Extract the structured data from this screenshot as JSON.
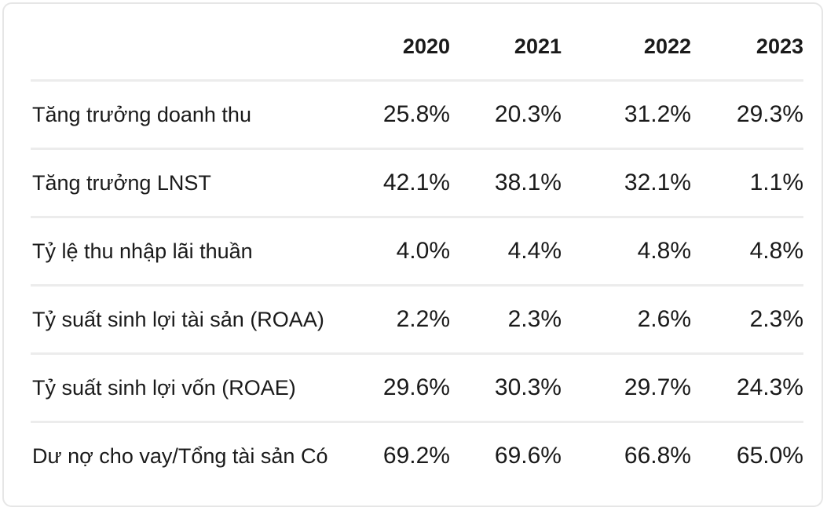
{
  "table": {
    "columns": [
      "",
      "2020",
      "2021",
      "2022",
      "2023"
    ],
    "rows": [
      {
        "label": "Tăng trưởng doanh thu",
        "values": [
          "25.8%",
          "20.3%",
          "31.2%",
          "29.3%"
        ]
      },
      {
        "label": "Tăng trưởng LNST",
        "values": [
          "42.1%",
          "38.1%",
          "32.1%",
          "1.1%"
        ]
      },
      {
        "label": "Tỷ lệ thu nhập lãi thuần",
        "values": [
          "4.0%",
          "4.4%",
          "4.8%",
          "4.8%"
        ]
      },
      {
        "label": "Tỷ suất sinh lợi tài sản (ROAA)",
        "values": [
          "2.2%",
          "2.3%",
          "2.6%",
          "2.3%"
        ]
      },
      {
        "label": "Tỷ suất sinh lợi vốn (ROAE)",
        "values": [
          "29.6%",
          "30.3%",
          "29.7%",
          "24.3%"
        ]
      },
      {
        "label": "Dư nợ cho vay/Tổng tài sản Có",
        "values": [
          "69.2%",
          "69.6%",
          "66.8%",
          "65.0%"
        ]
      }
    ]
  },
  "chart_data": {
    "type": "table",
    "columns": [
      "2020",
      "2021",
      "2022",
      "2023"
    ],
    "rows": [
      {
        "label": "Tăng trưởng doanh thu",
        "values": [
          "25.8%",
          "20.3%",
          "31.2%",
          "29.3%"
        ]
      },
      {
        "label": "Tăng trưởng LNST",
        "values": [
          "42.1%",
          "38.1%",
          "32.1%",
          "1.1%"
        ]
      },
      {
        "label": "Tỷ lệ thu nhập lãi thuần",
        "values": [
          "4.0%",
          "4.4%",
          "4.8%",
          "4.8%"
        ]
      },
      {
        "label": "Tỷ suất sinh lợi tài sản (ROAA)",
        "values": [
          "2.2%",
          "2.3%",
          "2.6%",
          "2.3%"
        ]
      },
      {
        "label": "Tỷ suất sinh lợi vốn (ROAE)",
        "values": [
          "29.6%",
          "30.3%",
          "29.7%",
          "24.3%"
        ]
      },
      {
        "label": "Dư nợ cho vay/Tổng tài sản Có",
        "values": [
          "69.2%",
          "69.6%",
          "66.8%",
          "65.0%"
        ]
      }
    ]
  }
}
